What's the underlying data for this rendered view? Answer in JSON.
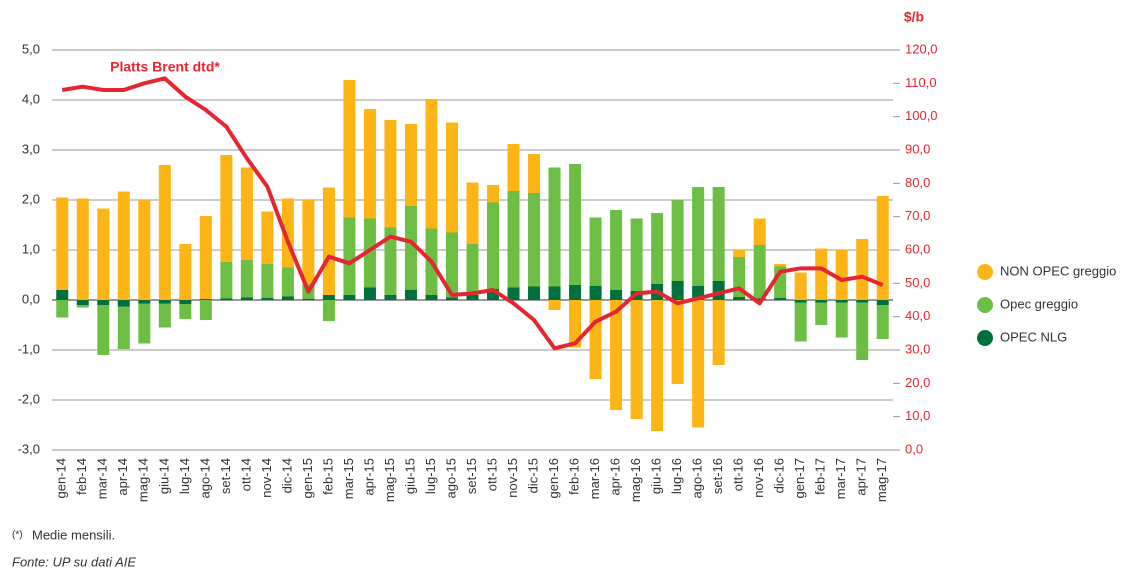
{
  "chart_data": {
    "type": "bar",
    "y2_label": "$/b",
    "footnote": "(*)",
    "footnote_text": "Medie mensili.",
    "source": "Fonte: UP su dati AIE",
    "categories": [
      "gen-14",
      "feb-14",
      "mar-14",
      "apr-14",
      "mag-14",
      "giu-14",
      "lug-14",
      "ago-14",
      "set-14",
      "ott-14",
      "nov-14",
      "dic-14",
      "gen-15",
      "feb-15",
      "mar-15",
      "apr-15",
      "mag-15",
      "giu-15",
      "lug-15",
      "ago-15",
      "set-15",
      "ott-15",
      "nov-15",
      "dic-15",
      "gen-16",
      "feb-16",
      "mar-16",
      "apr-16",
      "mag-16",
      "giu-16",
      "lug-16",
      "ago-16",
      "set-16",
      "ott-16",
      "nov-16",
      "dic-16",
      "gen-17",
      "feb-17",
      "mar-17",
      "apr-17",
      "mag-17"
    ],
    "series": [
      {
        "name": "NON OPEC greggio",
        "color": "#fdb515",
        "values": [
          1.85,
          2.03,
          1.83,
          2.17,
          2.0,
          2.7,
          1.12,
          1.66,
          2.14,
          1.85,
          1.05,
          1.38,
          1.68,
          2.15,
          2.75,
          2.19,
          2.15,
          1.64,
          2.59,
          2.2,
          1.23,
          0.35,
          0.94,
          0.78,
          -0.2,
          -0.95,
          -1.58,
          -2.2,
          -2.38,
          -2.62,
          -1.68,
          -2.55,
          -1.3,
          0.14,
          0.53,
          0.05,
          0.55,
          1.03,
          1.0,
          1.22,
          2.08
        ]
      },
      {
        "name": "Opec greggio",
        "color": "#6dbe45",
        "values": [
          -0.35,
          -0.05,
          -1.0,
          -0.85,
          -0.8,
          -0.48,
          -0.3,
          -0.4,
          0.73,
          0.75,
          0.68,
          0.58,
          0.3,
          -0.42,
          1.55,
          1.38,
          1.35,
          1.68,
          1.33,
          1.3,
          1.02,
          1.73,
          1.93,
          1.87,
          2.38,
          2.42,
          1.37,
          1.6,
          1.45,
          1.42,
          1.62,
          1.98,
          1.88,
          0.8,
          1.07,
          0.63,
          -0.78,
          -0.45,
          -0.7,
          -1.15,
          -0.68
        ]
      },
      {
        "name": "OPEC NLG",
        "color": "#00703c",
        "values": [
          0.2,
          -0.1,
          -0.1,
          -0.13,
          -0.07,
          -0.07,
          -0.08,
          0.02,
          0.03,
          0.05,
          0.04,
          0.07,
          0.02,
          0.1,
          0.1,
          0.25,
          0.1,
          0.2,
          0.1,
          0.05,
          0.1,
          0.22,
          0.25,
          0.27,
          0.27,
          0.3,
          0.28,
          0.2,
          0.18,
          0.32,
          0.38,
          0.28,
          0.38,
          0.06,
          0.03,
          0.04,
          -0.05,
          -0.05,
          -0.05,
          -0.05,
          -0.1
        ]
      },
      {
        "name": "Platts Brent dtd*",
        "color": "#e52630",
        "type": "line",
        "axis": "y2",
        "values": [
          108,
          109,
          108,
          108,
          110,
          111.5,
          106,
          102,
          97,
          87.5,
          79,
          62.5,
          47.5,
          58,
          56,
          60,
          64,
          62.5,
          56.5,
          46.5,
          47,
          48,
          44,
          39,
          30.5,
          32,
          38.5,
          41.5,
          47,
          47.5,
          44,
          45.5,
          47,
          48.5,
          44,
          53.5,
          54.5,
          54.5,
          51,
          52,
          49.5
        ]
      }
    ],
    "ylim": [
      -3,
      5
    ],
    "yticks": [
      {
        "value": -3,
        "label": "-3,0"
      },
      {
        "value": -2,
        "label": "-2,0"
      },
      {
        "value": -1,
        "label": "-1,0"
      },
      {
        "value": 0,
        "label": "0,0"
      },
      {
        "value": 1,
        "label": "1,0"
      },
      {
        "value": 2,
        "label": "2,0"
      },
      {
        "value": 3,
        "label": "3,0"
      },
      {
        "value": 4,
        "label": "4,0"
      },
      {
        "value": 5,
        "label": "5,0"
      }
    ],
    "y2lim": [
      0,
      120
    ],
    "y2ticks": [
      {
        "value": 0,
        "label": "0,0"
      },
      {
        "value": 10,
        "label": "10,0"
      },
      {
        "value": 20,
        "label": "20,0"
      },
      {
        "value": 30,
        "label": "30,0"
      },
      {
        "value": 40,
        "label": "40,0"
      },
      {
        "value": 50,
        "label": "50,0"
      },
      {
        "value": 60,
        "label": "60,0"
      },
      {
        "value": 70,
        "label": "70,0"
      },
      {
        "value": 80,
        "label": "80,0"
      },
      {
        "value": 90,
        "label": "90,0"
      },
      {
        "value": 100,
        "label": "100,0"
      },
      {
        "value": 110,
        "label": "110,0"
      },
      {
        "value": 120,
        "label": "120,0"
      }
    ],
    "grid": true,
    "legend": "right"
  }
}
